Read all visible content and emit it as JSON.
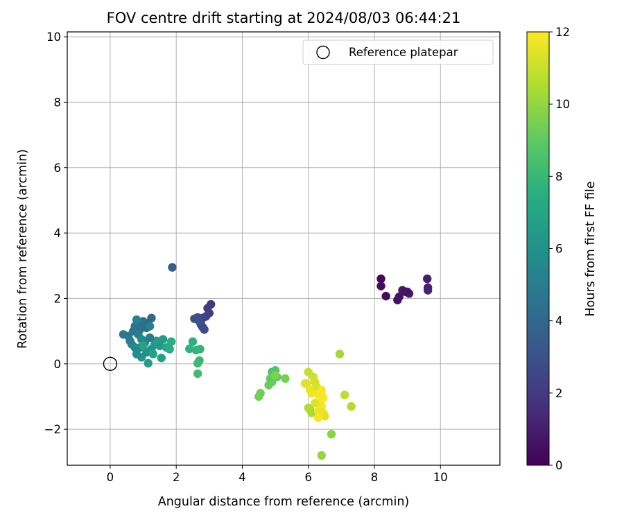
{
  "chart_data": {
    "type": "scatter",
    "title": "FOV centre drift starting at 2024/08/03 06:44:21",
    "xlabel": "Angular distance from reference (arcmin)",
    "ylabel": "Rotation from reference (arcmin)",
    "xlim": [
      -1.3,
      11.8
    ],
    "ylim": [
      -3.1,
      10.15
    ],
    "xticks": [
      0,
      2,
      4,
      6,
      8,
      10
    ],
    "yticks": [
      -2,
      0,
      2,
      4,
      6,
      8,
      10
    ],
    "grid": true,
    "legend": {
      "location": "upper-right",
      "entries": [
        "Reference platepar"
      ]
    },
    "colorbar": {
      "label": "Hours from first FF file",
      "range": [
        0,
        12
      ],
      "ticks": [
        0,
        2,
        4,
        6,
        8,
        10,
        12
      ],
      "colormap": "viridis"
    },
    "reference_point": {
      "name": "Reference platepar",
      "x": 0,
      "y": 0
    },
    "points": [
      {
        "x": 8.2,
        "y": 2.6,
        "h": 0.2
      },
      {
        "x": 8.2,
        "y": 2.38,
        "h": 0.3
      },
      {
        "x": 8.35,
        "y": 2.07,
        "h": 0.4
      },
      {
        "x": 8.7,
        "y": 1.95,
        "h": 0.5
      },
      {
        "x": 8.75,
        "y": 2.05,
        "h": 0.6
      },
      {
        "x": 8.85,
        "y": 2.25,
        "h": 0.7
      },
      {
        "x": 9.0,
        "y": 2.2,
        "h": 0.8
      },
      {
        "x": 9.05,
        "y": 2.15,
        "h": 0.9
      },
      {
        "x": 9.6,
        "y": 2.6,
        "h": 1.0
      },
      {
        "x": 9.62,
        "y": 2.33,
        "h": 1.1
      },
      {
        "x": 9.62,
        "y": 2.25,
        "h": 1.2
      },
      {
        "x": 8.95,
        "y": 2.2,
        "h": 0.6
      },
      {
        "x": 3.05,
        "y": 1.82,
        "h": 2.0
      },
      {
        "x": 2.95,
        "y": 1.7,
        "h": 2.1
      },
      {
        "x": 3.0,
        "y": 1.55,
        "h": 2.2
      },
      {
        "x": 2.9,
        "y": 1.45,
        "h": 2.3
      },
      {
        "x": 2.8,
        "y": 1.4,
        "h": 2.4
      },
      {
        "x": 2.75,
        "y": 1.2,
        "h": 2.5
      },
      {
        "x": 2.8,
        "y": 1.12,
        "h": 2.6
      },
      {
        "x": 2.85,
        "y": 1.05,
        "h": 2.7
      },
      {
        "x": 2.65,
        "y": 1.42,
        "h": 2.8
      },
      {
        "x": 2.55,
        "y": 1.38,
        "h": 2.9
      },
      {
        "x": 2.7,
        "y": 1.3,
        "h": 3.0
      },
      {
        "x": 1.88,
        "y": 2.95,
        "h": 3.6
      },
      {
        "x": 1.25,
        "y": 1.4,
        "h": 4.0
      },
      {
        "x": 1.15,
        "y": 1.25,
        "h": 4.1
      },
      {
        "x": 1.0,
        "y": 1.3,
        "h": 4.2
      },
      {
        "x": 0.95,
        "y": 1.2,
        "h": 4.3
      },
      {
        "x": 1.1,
        "y": 1.1,
        "h": 4.4
      },
      {
        "x": 0.9,
        "y": 1.05,
        "h": 4.5
      },
      {
        "x": 0.75,
        "y": 1.15,
        "h": 4.6
      },
      {
        "x": 0.7,
        "y": 1.0,
        "h": 4.7
      },
      {
        "x": 0.4,
        "y": 0.9,
        "h": 4.8
      },
      {
        "x": 0.55,
        "y": 0.85,
        "h": 4.9
      },
      {
        "x": 0.6,
        "y": 0.7,
        "h": 5.0
      },
      {
        "x": 0.85,
        "y": 0.9,
        "h": 5.1
      },
      {
        "x": 1.2,
        "y": 1.15,
        "h": 5.2
      },
      {
        "x": 0.8,
        "y": 1.35,
        "h": 5.3
      },
      {
        "x": 0.65,
        "y": 0.6,
        "h": 5.4
      },
      {
        "x": 0.75,
        "y": 0.5,
        "h": 5.5
      },
      {
        "x": 0.95,
        "y": 0.75,
        "h": 5.6
      },
      {
        "x": 1.05,
        "y": 0.65,
        "h": 5.7
      },
      {
        "x": 0.9,
        "y": 0.5,
        "h": 5.8
      },
      {
        "x": 0.8,
        "y": 0.3,
        "h": 5.9
      },
      {
        "x": 0.95,
        "y": 0.2,
        "h": 6.0
      },
      {
        "x": 1.1,
        "y": 0.35,
        "h": 6.1
      },
      {
        "x": 1.25,
        "y": 0.45,
        "h": 6.2
      },
      {
        "x": 1.35,
        "y": 0.6,
        "h": 6.3
      },
      {
        "x": 1.5,
        "y": 0.55,
        "h": 6.4
      },
      {
        "x": 1.6,
        "y": 0.75,
        "h": 6.5
      },
      {
        "x": 1.4,
        "y": 0.7,
        "h": 6.6
      },
      {
        "x": 1.15,
        "y": 0.02,
        "h": 6.7
      },
      {
        "x": 1.55,
        "y": 0.18,
        "h": 6.8
      },
      {
        "x": 1.3,
        "y": 0.3,
        "h": 6.9
      },
      {
        "x": 1.0,
        "y": 0.55,
        "h": 7.0
      },
      {
        "x": 1.2,
        "y": 0.8,
        "h": 5.0
      },
      {
        "x": 1.7,
        "y": 0.5,
        "h": 7.3
      },
      {
        "x": 1.8,
        "y": 0.45,
        "h": 7.4
      },
      {
        "x": 1.85,
        "y": 0.68,
        "h": 7.5
      },
      {
        "x": 2.5,
        "y": 0.68,
        "h": 7.6
      },
      {
        "x": 2.4,
        "y": 0.46,
        "h": 7.7
      },
      {
        "x": 2.6,
        "y": 0.42,
        "h": 7.8
      },
      {
        "x": 2.72,
        "y": 0.45,
        "h": 7.9
      },
      {
        "x": 2.7,
        "y": 0.1,
        "h": 8.0
      },
      {
        "x": 2.65,
        "y": 0.02,
        "h": 8.1
      },
      {
        "x": 2.65,
        "y": -0.3,
        "h": 8.2
      },
      {
        "x": 4.9,
        "y": -0.25,
        "h": 8.6
      },
      {
        "x": 5.0,
        "y": -0.2,
        "h": 8.7
      },
      {
        "x": 4.95,
        "y": -0.35,
        "h": 8.8
      },
      {
        "x": 5.05,
        "y": -0.4,
        "h": 8.9
      },
      {
        "x": 4.85,
        "y": -0.45,
        "h": 9.0
      },
      {
        "x": 4.9,
        "y": -0.55,
        "h": 9.1
      },
      {
        "x": 4.8,
        "y": -0.65,
        "h": 9.2
      },
      {
        "x": 4.55,
        "y": -0.9,
        "h": 9.3
      },
      {
        "x": 4.5,
        "y": -1.0,
        "h": 9.4
      },
      {
        "x": 5.3,
        "y": -0.45,
        "h": 9.5
      },
      {
        "x": 5.0,
        "y": -0.35,
        "h": 9.6
      },
      {
        "x": 6.95,
        "y": 0.3,
        "h": 10.3
      },
      {
        "x": 6.7,
        "y": -2.15,
        "h": 9.8
      },
      {
        "x": 6.4,
        "y": -2.8,
        "h": 10.0
      },
      {
        "x": 7.3,
        "y": -1.3,
        "h": 10.6
      },
      {
        "x": 7.1,
        "y": -0.95,
        "h": 10.8
      },
      {
        "x": 6.05,
        "y": -1.4,
        "h": 10.2
      },
      {
        "x": 6.1,
        "y": -1.5,
        "h": 10.4
      },
      {
        "x": 6.0,
        "y": -1.35,
        "h": 10.6
      },
      {
        "x": 6.0,
        "y": -0.25,
        "h": 11.0
      },
      {
        "x": 6.15,
        "y": -0.4,
        "h": 11.1
      },
      {
        "x": 6.2,
        "y": -0.55,
        "h": 11.2
      },
      {
        "x": 6.25,
        "y": -0.7,
        "h": 11.3
      },
      {
        "x": 5.95,
        "y": -0.6,
        "h": 11.4
      },
      {
        "x": 5.9,
        "y": -0.6,
        "h": 11.5
      },
      {
        "x": 6.05,
        "y": -0.8,
        "h": 11.6
      },
      {
        "x": 6.1,
        "y": -0.9,
        "h": 11.7
      },
      {
        "x": 6.3,
        "y": -0.95,
        "h": 11.8
      },
      {
        "x": 6.4,
        "y": -0.8,
        "h": 11.9
      },
      {
        "x": 6.45,
        "y": -1.05,
        "h": 12.0
      },
      {
        "x": 6.35,
        "y": -1.15,
        "h": 11.9
      },
      {
        "x": 6.4,
        "y": -1.3,
        "h": 11.8
      },
      {
        "x": 6.3,
        "y": -1.45,
        "h": 11.7
      },
      {
        "x": 6.45,
        "y": -1.5,
        "h": 11.6
      },
      {
        "x": 6.5,
        "y": -1.6,
        "h": 11.5
      },
      {
        "x": 6.3,
        "y": -1.65,
        "h": 11.9
      },
      {
        "x": 6.2,
        "y": -1.2,
        "h": 11.4
      },
      {
        "x": 6.35,
        "y": -1.0,
        "h": 12.0
      },
      {
        "x": 6.4,
        "y": -0.95,
        "h": 11.9
      }
    ]
  }
}
